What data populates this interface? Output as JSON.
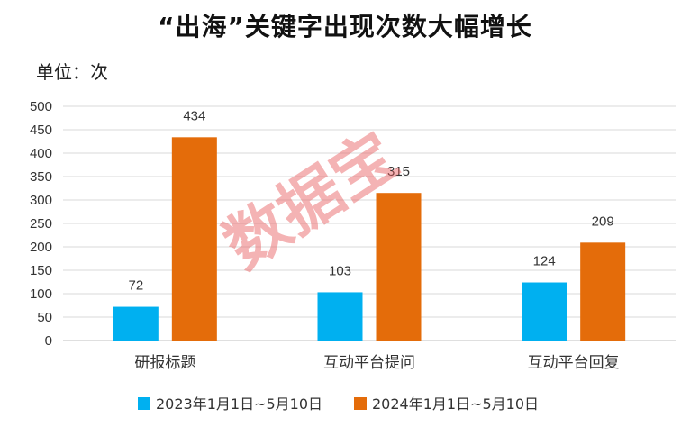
{
  "chart_data": {
    "type": "bar",
    "title": "“出海”关键字出现次数大幅增长",
    "unit_label": "单位：次",
    "categories": [
      "研报标题",
      "互动平台提问",
      "互动平台回复"
    ],
    "series": [
      {
        "name": "2023年1月1日~5月10日",
        "values": [
          72,
          103,
          124
        ],
        "color": "#00b0f0"
      },
      {
        "name": "2024年1月1日~5月10日",
        "values": [
          434,
          315,
          209
        ],
        "color": "#e46c0a"
      }
    ],
    "ylim": [
      0,
      500
    ],
    "yticks": [
      0,
      50,
      100,
      150,
      200,
      250,
      300,
      350,
      400,
      450,
      500
    ],
    "grid": true,
    "legend": "bottom",
    "watermark": "数据宝"
  }
}
